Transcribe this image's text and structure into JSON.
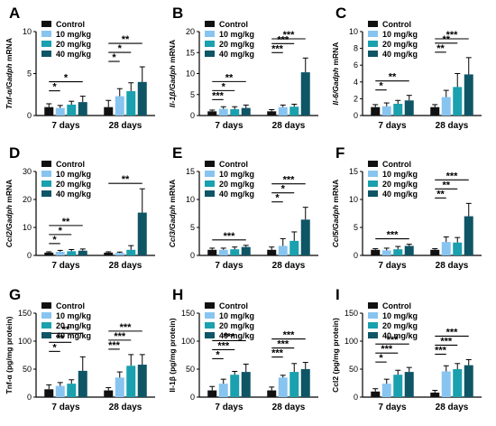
{
  "figure": {
    "background": "#ffffff",
    "group_colors": [
      "#111111",
      "#88c4f0",
      "#1aa0ae",
      "#0e5566"
    ],
    "legend_labels": [
      "Control",
      "10 mg/kg",
      "20 mg/kg",
      "40 mg/kg"
    ],
    "categories": [
      "7 days",
      "28 days"
    ]
  },
  "chart_data": [
    {
      "panel": "A",
      "type": "bar",
      "ylabel": "Tnf-α/Gadph mRNA",
      "ylabel_italic_part": "Tnf-α/Gadph",
      "ylabel_rest": " mRNA",
      "ylim": [
        0,
        10
      ],
      "yticks": [
        0,
        5,
        10
      ],
      "categories": [
        "7 days",
        "28 days"
      ],
      "series": [
        {
          "name": "Control",
          "values": [
            1.0,
            1.0
          ],
          "errors": [
            0.4,
            0.8
          ]
        },
        {
          "name": "10 mg/kg",
          "values": [
            0.9,
            2.3
          ],
          "errors": [
            0.3,
            0.9
          ]
        },
        {
          "name": "20 mg/kg",
          "values": [
            1.3,
            2.9
          ],
          "errors": [
            0.4,
            1.0
          ]
        },
        {
          "name": "40 mg/kg",
          "values": [
            1.6,
            4.0
          ],
          "errors": [
            0.7,
            1.8
          ]
        }
      ],
      "significance": [
        {
          "group": 0,
          "to": 3,
          "label": "*"
        },
        {
          "group": 0,
          "to": 1,
          "label": "*"
        },
        {
          "group": 1,
          "to": 3,
          "label": "**"
        },
        {
          "group": 1,
          "to": 2,
          "label": "*"
        },
        {
          "group": 1,
          "to": 1,
          "label": "*"
        }
      ]
    },
    {
      "panel": "B",
      "type": "bar",
      "ylabel": "Il-1β/Gadph mRNA",
      "ylabel_italic_part": "Il-1β/Gadph",
      "ylabel_rest": " mRNA",
      "ylim": [
        0,
        20
      ],
      "yticks": [
        0,
        5,
        10,
        15,
        20
      ],
      "categories": [
        "7 days",
        "28 days"
      ],
      "series": [
        {
          "name": "Control",
          "values": [
            1.0,
            1.0
          ],
          "errors": [
            0.3,
            0.4
          ]
        },
        {
          "name": "10 mg/kg",
          "values": [
            1.6,
            2.0
          ],
          "errors": [
            0.5,
            0.5
          ]
        },
        {
          "name": "20 mg/kg",
          "values": [
            1.5,
            2.1
          ],
          "errors": [
            0.6,
            0.6
          ]
        },
        {
          "name": "40 mg/kg",
          "values": [
            1.8,
            10.3
          ],
          "errors": [
            0.7,
            3.4
          ]
        }
      ],
      "significance": [
        {
          "group": 0,
          "to": 3,
          "label": "**"
        },
        {
          "group": 0,
          "to": 2,
          "label": "*"
        },
        {
          "group": 0,
          "to": 1,
          "label": "***"
        },
        {
          "group": 1,
          "to": 3,
          "label": "***"
        },
        {
          "group": 1,
          "to": 2,
          "label": "***"
        },
        {
          "group": 1,
          "to": 1,
          "label": "***"
        }
      ]
    },
    {
      "panel": "C",
      "type": "bar",
      "ylabel": "Il-6/Gadph mRNA",
      "ylabel_italic_part": "Il-6/Gadph",
      "ylabel_rest": " mRNA",
      "ylim": [
        0,
        10
      ],
      "yticks": [
        0,
        2,
        4,
        6,
        8,
        10
      ],
      "categories": [
        "7 days",
        "28 days"
      ],
      "series": [
        {
          "name": "Control",
          "values": [
            1.0,
            1.0
          ],
          "errors": [
            0.3,
            0.3
          ]
        },
        {
          "name": "10 mg/kg",
          "values": [
            1.1,
            2.2
          ],
          "errors": [
            0.4,
            0.8
          ]
        },
        {
          "name": "20 mg/kg",
          "values": [
            1.4,
            3.4
          ],
          "errors": [
            0.4,
            1.6
          ]
        },
        {
          "name": "40 mg/kg",
          "values": [
            1.8,
            4.9
          ],
          "errors": [
            0.6,
            2.0
          ]
        }
      ],
      "significance": [
        {
          "group": 0,
          "to": 3,
          "label": "**"
        },
        {
          "group": 0,
          "to": 1,
          "label": "*"
        },
        {
          "group": 1,
          "to": 3,
          "label": "***"
        },
        {
          "group": 1,
          "to": 2,
          "label": "**"
        },
        {
          "group": 1,
          "to": 1,
          "label": "**"
        }
      ]
    },
    {
      "panel": "D",
      "type": "bar",
      "ylabel": "Ccl2/Gadph mRNA",
      "ylabel_italic_part": "Ccl2/Gadph",
      "ylabel_rest": " mRNA",
      "ylim": [
        0,
        30
      ],
      "yticks": [
        0,
        10,
        20,
        30
      ],
      "categories": [
        "7 days",
        "28 days"
      ],
      "series": [
        {
          "name": "Control",
          "values": [
            1.0,
            1.0
          ],
          "errors": [
            0.3,
            0.3
          ]
        },
        {
          "name": "10 mg/kg",
          "values": [
            1.3,
            0.9
          ],
          "errors": [
            0.5,
            0.3
          ]
        },
        {
          "name": "20 mg/kg",
          "values": [
            1.5,
            2.0
          ],
          "errors": [
            0.6,
            1.5
          ]
        },
        {
          "name": "40 mg/kg",
          "values": [
            1.7,
            15.3
          ],
          "errors": [
            0.6,
            8.5
          ]
        }
      ],
      "significance": [
        {
          "group": 0,
          "to": 3,
          "label": "**"
        },
        {
          "group": 0,
          "to": 2,
          "label": "*"
        },
        {
          "group": 0,
          "to": 1,
          "label": "*"
        },
        {
          "group": 1,
          "to": 3,
          "label": "**"
        }
      ]
    },
    {
      "panel": "E",
      "type": "bar",
      "ylabel": "Ccl3/Gadph mRNA",
      "ylabel_italic_part": "Ccl3/Gadph",
      "ylabel_rest": " mRNA",
      "ylim": [
        0,
        15
      ],
      "yticks": [
        0,
        5,
        10,
        15
      ],
      "categories": [
        "7 days",
        "28 days"
      ],
      "series": [
        {
          "name": "Control",
          "values": [
            1.0,
            1.0
          ],
          "errors": [
            0.3,
            0.5
          ]
        },
        {
          "name": "10 mg/kg",
          "values": [
            1.0,
            1.7
          ],
          "errors": [
            0.3,
            1.3
          ]
        },
        {
          "name": "20 mg/kg",
          "values": [
            1.1,
            2.6
          ],
          "errors": [
            0.4,
            1.6
          ]
        },
        {
          "name": "40 mg/kg",
          "values": [
            1.5,
            6.4
          ],
          "errors": [
            0.3,
            2.2
          ]
        }
      ],
      "significance": [
        {
          "group": 0,
          "to": 3,
          "label": "***"
        },
        {
          "group": 1,
          "to": 3,
          "label": "***"
        },
        {
          "group": 1,
          "to": 2,
          "label": "*"
        },
        {
          "group": 1,
          "to": 1,
          "label": "*"
        }
      ]
    },
    {
      "panel": "F",
      "type": "bar",
      "ylabel": "Ccl5/Gadph mRNA",
      "ylabel_italic_part": "Ccl5/Gadph",
      "ylabel_rest": " mRNA",
      "ylim": [
        0,
        15
      ],
      "yticks": [
        0,
        5,
        10,
        15
      ],
      "categories": [
        "7 days",
        "28 days"
      ],
      "series": [
        {
          "name": "Control",
          "values": [
            1.0,
            1.0
          ],
          "errors": [
            0.2,
            0.2
          ]
        },
        {
          "name": "10 mg/kg",
          "values": [
            0.9,
            2.4
          ],
          "errors": [
            0.4,
            0.9
          ]
        },
        {
          "name": "20 mg/kg",
          "values": [
            1.1,
            2.3
          ],
          "errors": [
            0.5,
            0.9
          ]
        },
        {
          "name": "40 mg/kg",
          "values": [
            1.7,
            7.0
          ],
          "errors": [
            0.3,
            2.3
          ]
        }
      ],
      "significance": [
        {
          "group": 0,
          "to": 3,
          "label": "***"
        },
        {
          "group": 1,
          "to": 3,
          "label": "***"
        },
        {
          "group": 1,
          "to": 2,
          "label": "**"
        },
        {
          "group": 1,
          "to": 1,
          "label": "**"
        }
      ]
    },
    {
      "panel": "G",
      "type": "bar",
      "ylabel": "Tnf-α (pg/mg protein)",
      "ylabel_italic_part": "",
      "ylabel_rest": "Tnf-α (pg/mg protein)",
      "ylim": [
        0,
        150
      ],
      "yticks": [
        0,
        50,
        100,
        150
      ],
      "categories": [
        "7 days",
        "28 days"
      ],
      "series": [
        {
          "name": "Control",
          "values": [
            14,
            12
          ],
          "errors": [
            8,
            5
          ]
        },
        {
          "name": "10 mg/kg",
          "values": [
            20,
            35
          ],
          "errors": [
            6,
            10
          ]
        },
        {
          "name": "20 mg/kg",
          "values": [
            24,
            56
          ],
          "errors": [
            7,
            20
          ]
        },
        {
          "name": "40 mg/kg",
          "values": [
            47,
            58
          ],
          "errors": [
            25,
            18
          ]
        }
      ],
      "significance": [
        {
          "group": 0,
          "to": 3,
          "label": "**"
        },
        {
          "group": 0,
          "to": 2,
          "label": "**"
        },
        {
          "group": 0,
          "to": 1,
          "label": "*"
        },
        {
          "group": 1,
          "to": 3,
          "label": "***"
        },
        {
          "group": 1,
          "to": 2,
          "label": "***"
        },
        {
          "group": 1,
          "to": 1,
          "label": "***"
        }
      ]
    },
    {
      "panel": "H",
      "type": "bar",
      "ylabel": "Il-1β (pg/mg protein)",
      "ylabel_italic_part": "",
      "ylabel_rest": "Il-1β (pg/mg protein)",
      "ylim": [
        0,
        150
      ],
      "yticks": [
        0,
        50,
        100,
        150
      ],
      "categories": [
        "7 days",
        "28 days"
      ],
      "series": [
        {
          "name": "Control",
          "values": [
            12,
            12
          ],
          "errors": [
            7,
            6
          ]
        },
        {
          "name": "10 mg/kg",
          "values": [
            24,
            35
          ],
          "errors": [
            8,
            4
          ]
        },
        {
          "name": "20 mg/kg",
          "values": [
            40,
            45
          ],
          "errors": [
            6,
            15
          ]
        },
        {
          "name": "40 mg/kg",
          "values": [
            45,
            50
          ],
          "errors": [
            14,
            12
          ]
        }
      ],
      "significance": [
        {
          "group": 0,
          "to": 3,
          "label": "***"
        },
        {
          "group": 0,
          "to": 2,
          "label": "***"
        },
        {
          "group": 0,
          "to": 1,
          "label": "*"
        },
        {
          "group": 1,
          "to": 3,
          "label": "***"
        },
        {
          "group": 1,
          "to": 2,
          "label": "***"
        },
        {
          "group": 1,
          "to": 1,
          "label": "***"
        }
      ]
    },
    {
      "panel": "I",
      "type": "bar",
      "ylabel": "Ccl2 (pg/mg protein)",
      "ylabel_italic_part": "",
      "ylabel_rest": "Ccl2 (pg/mg protein)",
      "ylim": [
        0,
        150
      ],
      "yticks": [
        0,
        50,
        100,
        150
      ],
      "categories": [
        "7 days",
        "28 days"
      ],
      "series": [
        {
          "name": "Control",
          "values": [
            10,
            8
          ],
          "errors": [
            5,
            4
          ]
        },
        {
          "name": "10 mg/kg",
          "values": [
            24,
            46
          ],
          "errors": [
            8,
            10
          ]
        },
        {
          "name": "20 mg/kg",
          "values": [
            40,
            50
          ],
          "errors": [
            8,
            10
          ]
        },
        {
          "name": "40 mg/kg",
          "values": [
            45,
            57
          ],
          "errors": [
            8,
            10
          ]
        }
      ],
      "significance": [
        {
          "group": 0,
          "to": 3,
          "label": "***"
        },
        {
          "group": 0,
          "to": 2,
          "label": "***"
        },
        {
          "group": 0,
          "to": 1,
          "label": "*"
        },
        {
          "group": 1,
          "to": 3,
          "label": "***"
        },
        {
          "group": 1,
          "to": 2,
          "label": "***"
        },
        {
          "group": 1,
          "to": 1,
          "label": "***"
        }
      ]
    }
  ]
}
